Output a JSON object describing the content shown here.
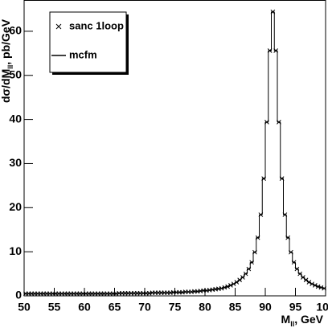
{
  "chart_data": {
    "type": "histogram",
    "x_label": "M",
    "x_label_sub": "ll",
    "x_label_unit": ", GeV",
    "y_label": "dσ/dM",
    "y_label_sub": "ll",
    "y_label_unit": ", pb/GeV",
    "bins": [
      50,
      50.5,
      51,
      51.5,
      52,
      52.5,
      53,
      53.5,
      54,
      54.5,
      55,
      55.5,
      56,
      56.5,
      57,
      57.5,
      58,
      58.5,
      59,
      59.5,
      60,
      60.5,
      61,
      61.5,
      62,
      62.5,
      63,
      63.5,
      64,
      64.5,
      65,
      65.5,
      66,
      66.5,
      67,
      67.5,
      68,
      68.5,
      69,
      69.5,
      70,
      70.5,
      71,
      71.5,
      72,
      72.5,
      73,
      73.5,
      74,
      74.5,
      75,
      75.5,
      76,
      76.5,
      77,
      77.5,
      78,
      78.5,
      79,
      79.5,
      80,
      80.5,
      81,
      81.5,
      82,
      82.5,
      83,
      83.5,
      84,
      84.5,
      85,
      85.5,
      86,
      86.5,
      87,
      87.5,
      88,
      88.5,
      89,
      89.5,
      90,
      90.5,
      91,
      91.5,
      92,
      92.5,
      93,
      93.5,
      94,
      94.5,
      95,
      95.5,
      96,
      96.5,
      97,
      97.5,
      98,
      98.5,
      99,
      99.5,
      100
    ],
    "series": [
      {
        "name": "sanc 1loop",
        "color": "#000000",
        "marker": "cross",
        "values": [
          0.5,
          0.5,
          0.5,
          0.5,
          0.5,
          0.5,
          0.5,
          0.5,
          0.5,
          0.5,
          0.5,
          0.5,
          0.5,
          0.5,
          0.5,
          0.5,
          0.5,
          0.5,
          0.5,
          0.5,
          0.5,
          0.5,
          0.5,
          0.5,
          0.5,
          0.5,
          0.5,
          0.5,
          0.5,
          0.5,
          0.5,
          0.6,
          0.6,
          0.6,
          0.6,
          0.6,
          0.6,
          0.6,
          0.6,
          0.6,
          0.6,
          0.6,
          0.7,
          0.7,
          0.7,
          0.7,
          0.7,
          0.7,
          0.7,
          0.8,
          0.8,
          0.8,
          0.8,
          0.9,
          0.9,
          0.9,
          1.0,
          1.0,
          1.1,
          1.2,
          1.2,
          1.3,
          1.4,
          1.5,
          1.6,
          1.7,
          1.9,
          2.1,
          2.4,
          2.7,
          3.1,
          3.6,
          4.2,
          5.0,
          6.1,
          7.6,
          9.9,
          13.2,
          18.4,
          26.6,
          39.4,
          55.6,
          64.4,
          55.6,
          39.4,
          26.6,
          18.4,
          13.2,
          9.9,
          7.6,
          6.1,
          5.0,
          4.2,
          3.6,
          3.1,
          2.7,
          2.4,
          2.1,
          1.9,
          1.7
        ]
      },
      {
        "name": "mcfm",
        "color": "#000000",
        "marker": "step",
        "values": [
          0.5,
          0.5,
          0.5,
          0.5,
          0.5,
          0.5,
          0.5,
          0.5,
          0.5,
          0.5,
          0.5,
          0.5,
          0.5,
          0.5,
          0.5,
          0.5,
          0.5,
          0.5,
          0.5,
          0.5,
          0.5,
          0.5,
          0.5,
          0.5,
          0.5,
          0.5,
          0.5,
          0.5,
          0.5,
          0.5,
          0.5,
          0.6,
          0.6,
          0.6,
          0.6,
          0.6,
          0.6,
          0.6,
          0.6,
          0.6,
          0.6,
          0.6,
          0.7,
          0.7,
          0.7,
          0.7,
          0.7,
          0.7,
          0.7,
          0.8,
          0.8,
          0.8,
          0.8,
          0.9,
          0.9,
          0.9,
          1.0,
          1.0,
          1.1,
          1.2,
          1.2,
          1.3,
          1.4,
          1.5,
          1.6,
          1.7,
          1.9,
          2.1,
          2.4,
          2.7,
          3.1,
          3.6,
          4.2,
          5.0,
          6.1,
          7.6,
          9.9,
          13.2,
          18.4,
          26.6,
          39.4,
          55.6,
          64.4,
          55.6,
          39.4,
          26.6,
          18.4,
          13.2,
          9.9,
          7.6,
          6.1,
          5.0,
          4.2,
          3.6,
          3.1,
          2.7,
          2.4,
          2.1,
          1.9,
          1.7
        ]
      }
    ],
    "xlim": [
      50,
      100
    ],
    "xticks": [
      50,
      55,
      60,
      65,
      70,
      75,
      80,
      85,
      90,
      95,
      100
    ],
    "ylim": [
      0,
      67
    ],
    "yticks": [
      0,
      10,
      20,
      30,
      40,
      50,
      60
    ],
    "legend": "top-left"
  }
}
